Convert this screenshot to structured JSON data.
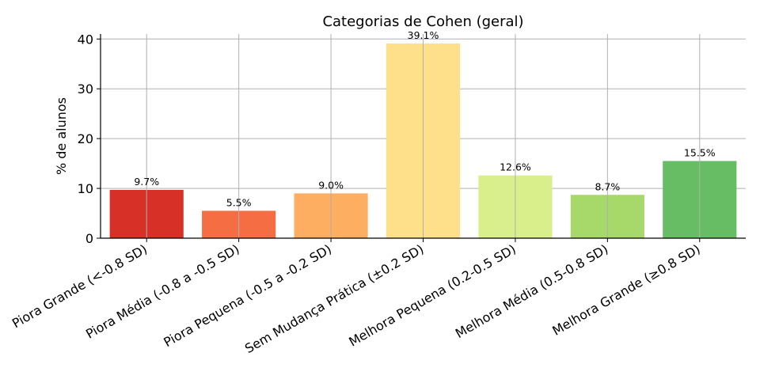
{
  "chart_data": {
    "type": "bar",
    "title": "Categorias de Cohen (geral)",
    "xlabel": "",
    "ylabel": "% de alunos",
    "ylim": [
      0,
      41
    ],
    "yticks": [
      0,
      10,
      20,
      30,
      40
    ],
    "grid": true,
    "categories": [
      "Piora Grande (<-0.8 SD)",
      "Piora Média (-0.8 a -0.5 SD)",
      "Piora Pequena (-0.5 a -0.2 SD)",
      "Sem Mudança Prática (±0.2 SD)",
      "Melhora Pequena (0.2-0.5 SD)",
      "Melhora Média (0.5-0.8 SD)",
      "Melhora Grande (≥0.8 SD)"
    ],
    "values": [
      9.7,
      5.5,
      9.0,
      39.1,
      12.6,
      8.7,
      15.5
    ],
    "data_labels": [
      "9.7%",
      "5.5%",
      "9.0%",
      "39.1%",
      "12.6%",
      "8.7%",
      "15.5%"
    ],
    "colors": [
      "#d73027",
      "#f46d43",
      "#fdae61",
      "#fee08b",
      "#d9ef8b",
      "#a6d96a",
      "#66bd63"
    ]
  }
}
